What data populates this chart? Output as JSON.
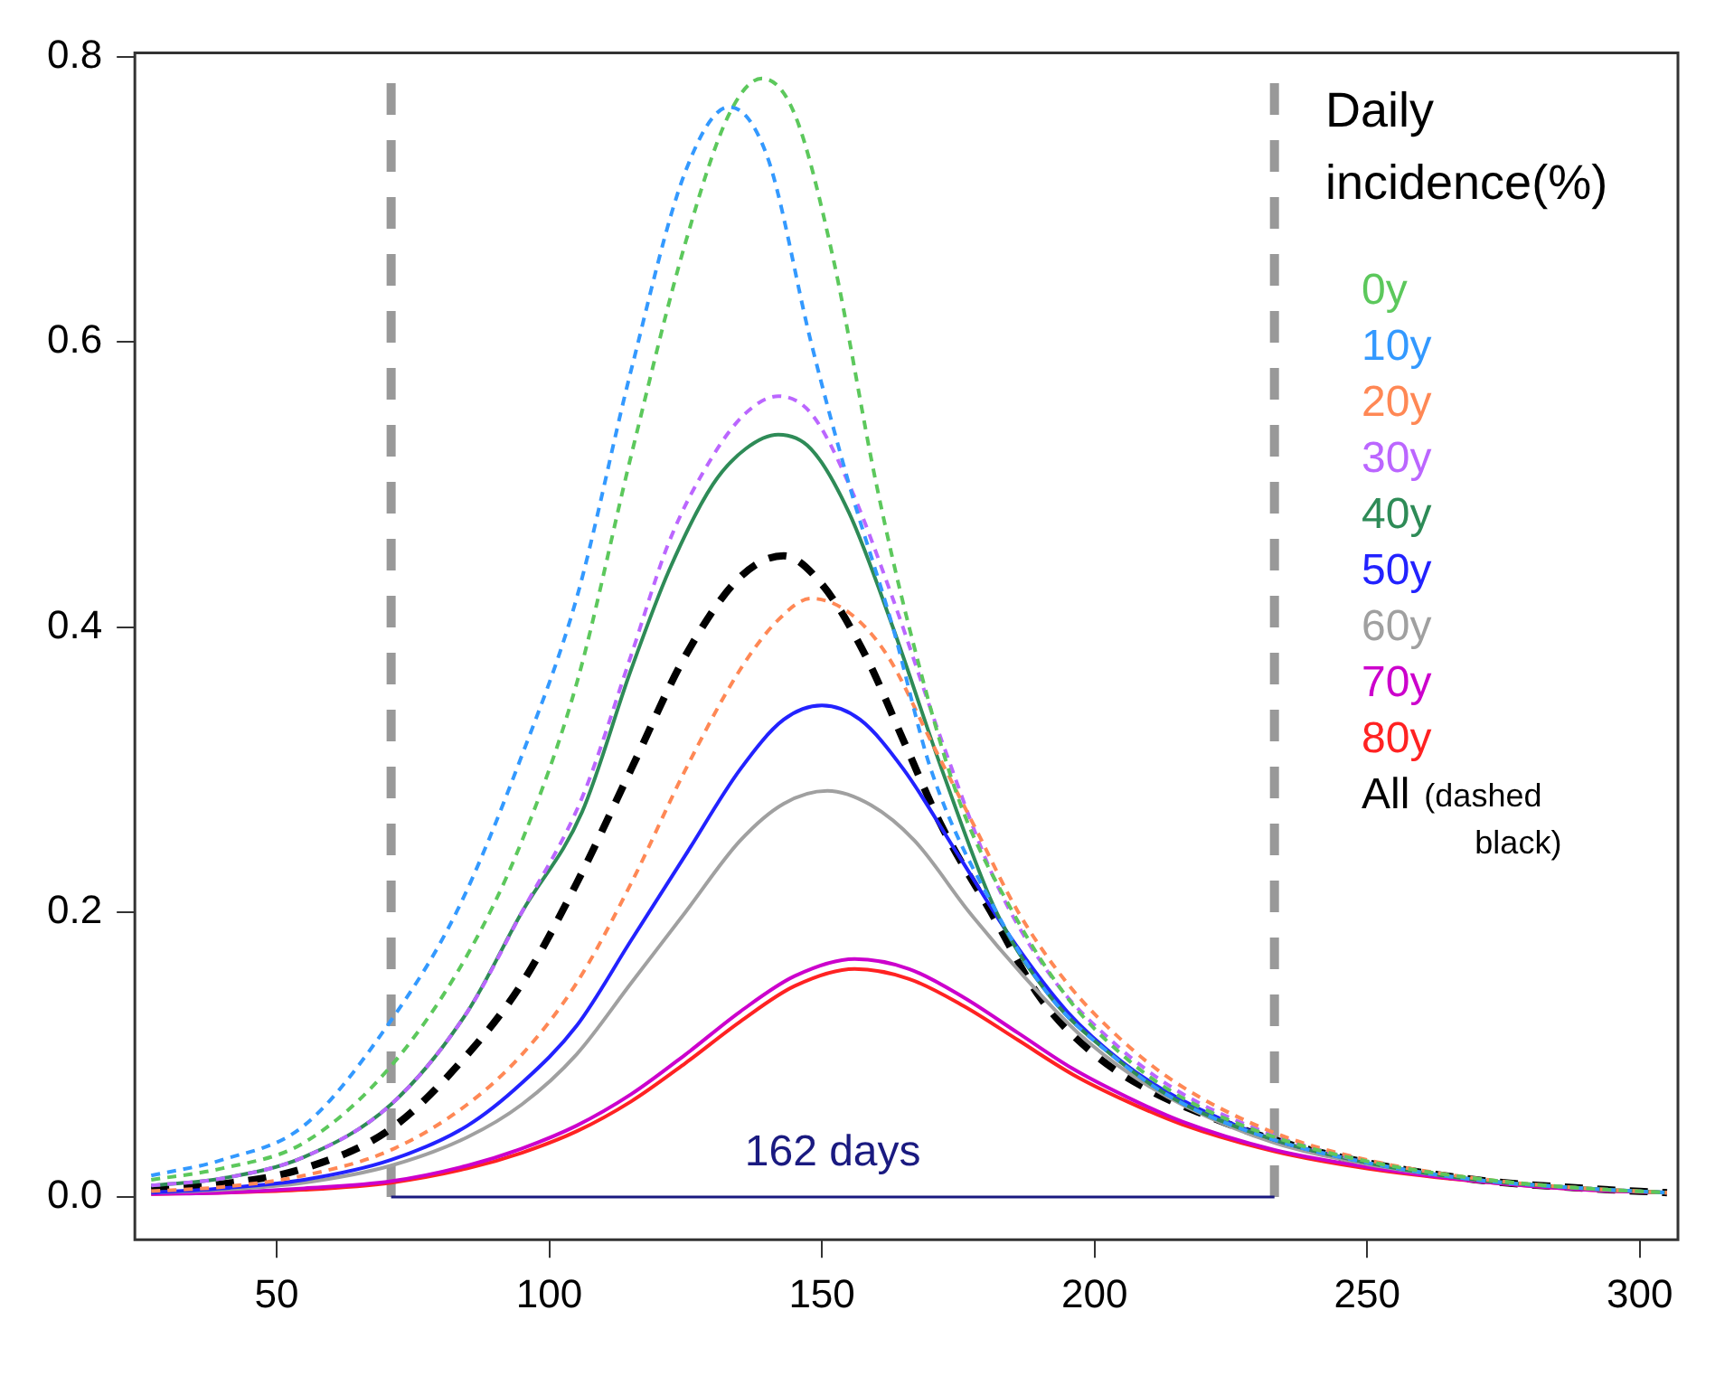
{
  "chart_data": {
    "type": "line",
    "legend_title": "Daily incidence(%)",
    "legend": "right",
    "grid": false,
    "marker": "none",
    "xlim": [
      24,
      307
    ],
    "ylim": [
      -0.03,
      0.803
    ],
    "xticks": [
      50,
      100,
      150,
      200,
      250,
      300
    ],
    "yticks": [
      {
        "value": 0,
        "label": "0.0"
      },
      0.2,
      0.4,
      0.6,
      0.8
    ],
    "series": [
      {
        "name": "0y",
        "color": "#5cc85c",
        "line_style": "dashed",
        "x": [
          27,
          40,
          55,
          71,
          85,
          95,
          105,
          115,
          125,
          133,
          139,
          145,
          152,
          160,
          166,
          175,
          185,
          195,
          205,
          215,
          233,
          250,
          270,
          290,
          305
        ],
        "values": [
          0.012,
          0.02,
          0.038,
          0.092,
          0.17,
          0.25,
          0.36,
          0.52,
          0.67,
          0.76,
          0.785,
          0.76,
          0.66,
          0.5,
          0.4,
          0.28,
          0.2,
          0.14,
          0.1,
          0.072,
          0.042,
          0.025,
          0.013,
          0.006,
          0.003
        ]
      },
      {
        "name": "10y",
        "color": "#3399ff",
        "line_style": "dashed",
        "x": [
          27,
          40,
          55,
          71,
          83,
          95,
          105,
          115,
          125,
          133,
          140,
          148,
          155,
          163,
          170,
          182,
          192,
          203,
          215,
          233,
          250,
          270,
          290,
          305
        ],
        "values": [
          0.015,
          0.026,
          0.05,
          0.124,
          0.2,
          0.31,
          0.42,
          0.58,
          0.72,
          0.765,
          0.73,
          0.6,
          0.5,
          0.4,
          0.3,
          0.2,
          0.14,
          0.1,
          0.068,
          0.04,
          0.024,
          0.012,
          0.006,
          0.003
        ]
      },
      {
        "name": "20y",
        "color": "#ff8855",
        "line_style": "dashed",
        "x": [
          27,
          40,
          55,
          71,
          85,
          95,
          105,
          115,
          125,
          135,
          142,
          148,
          155,
          162,
          170,
          178,
          186,
          195,
          205,
          215,
          233,
          250,
          270,
          290,
          305
        ],
        "values": [
          0.004,
          0.007,
          0.015,
          0.033,
          0.065,
          0.1,
          0.15,
          0.22,
          0.3,
          0.37,
          0.405,
          0.42,
          0.41,
          0.38,
          0.32,
          0.26,
          0.2,
          0.15,
          0.11,
          0.08,
          0.045,
          0.026,
          0.013,
          0.006,
          0.003
        ]
      },
      {
        "name": "30y",
        "color": "#bb66ff",
        "line_style": "dashed",
        "x": [
          27,
          40,
          55,
          71,
          85,
          95,
          106,
          115,
          122,
          130,
          136,
          142,
          148,
          155,
          163,
          172,
          182,
          192,
          203,
          215,
          233,
          247
        ],
        "values": [
          0.008,
          0.013,
          0.028,
          0.065,
          0.13,
          0.2,
          0.28,
          0.38,
          0.46,
          0.52,
          0.55,
          0.562,
          0.55,
          0.5,
          0.42,
          0.32,
          0.22,
          0.155,
          0.11,
          0.075,
          0.043,
          0.027
        ]
      },
      {
        "name": "40y",
        "color": "#2e8b57",
        "line_style": "solid",
        "x": [
          27,
          40,
          55,
          71,
          85,
          95,
          106,
          115,
          122,
          130,
          136,
          142,
          148,
          155,
          163,
          172,
          182,
          192,
          203,
          215,
          233,
          250,
          270,
          290,
          305
        ],
        "values": [
          0.008,
          0.013,
          0.028,
          0.065,
          0.13,
          0.2,
          0.27,
          0.37,
          0.44,
          0.5,
          0.525,
          0.535,
          0.525,
          0.48,
          0.4,
          0.3,
          0.2,
          0.14,
          0.1,
          0.068,
          0.04,
          0.024,
          0.012,
          0.006,
          0.003
        ]
      },
      {
        "name": "50y",
        "color": "#2222ff",
        "line_style": "solid",
        "x": [
          27,
          40,
          55,
          71,
          85,
          95,
          105,
          115,
          125,
          135,
          143,
          150,
          157,
          165,
          175,
          185,
          195,
          205,
          215,
          233,
          250
        ],
        "values": [
          0.003,
          0.006,
          0.012,
          0.026,
          0.05,
          0.08,
          0.12,
          0.18,
          0.24,
          0.3,
          0.335,
          0.345,
          0.335,
          0.3,
          0.24,
          0.18,
          0.13,
          0.095,
          0.07,
          0.04,
          0.024
        ]
      },
      {
        "name": "60y",
        "color": "#a0a0a0",
        "line_style": "solid",
        "x": [
          27,
          40,
          55,
          71,
          85,
          95,
          105,
          115,
          125,
          135,
          143,
          151,
          159,
          167,
          177,
          187,
          197,
          207,
          217,
          233,
          250,
          270,
          290,
          305
        ],
        "values": [
          0.003,
          0.005,
          0.01,
          0.022,
          0.042,
          0.065,
          0.1,
          0.15,
          0.2,
          0.25,
          0.276,
          0.285,
          0.275,
          0.25,
          0.2,
          0.155,
          0.115,
          0.085,
          0.063,
          0.038,
          0.023,
          0.012,
          0.006,
          0.003
        ]
      },
      {
        "name": "70y",
        "color": "#cc00cc",
        "line_style": "solid",
        "x": [
          27,
          40,
          55,
          71,
          85,
          95,
          105,
          115,
          125,
          135,
          145,
          156,
          166,
          176,
          186,
          196,
          206,
          216,
          233,
          250,
          270,
          290,
          305
        ],
        "values": [
          0.002,
          0.003,
          0.006,
          0.011,
          0.022,
          0.034,
          0.05,
          0.072,
          0.1,
          0.13,
          0.155,
          0.167,
          0.16,
          0.14,
          0.115,
          0.09,
          0.07,
          0.053,
          0.033,
          0.021,
          0.011,
          0.005,
          0.003
        ]
      },
      {
        "name": "80y",
        "color": "#ff2222",
        "line_style": "solid",
        "x": [
          27,
          40,
          55,
          71,
          85,
          95,
          105,
          115,
          125,
          135,
          145,
          156,
          166,
          176,
          186,
          196,
          206,
          216,
          233,
          250,
          270,
          290,
          305
        ],
        "values": [
          0.002,
          0.003,
          0.005,
          0.01,
          0.02,
          0.031,
          0.046,
          0.067,
          0.094,
          0.123,
          0.148,
          0.16,
          0.153,
          0.134,
          0.11,
          0.086,
          0.067,
          0.051,
          0.032,
          0.02,
          0.011,
          0.005,
          0.003
        ]
      },
      {
        "name": "All",
        "color": "#000000",
        "line_style": "dashed",
        "x": [
          27,
          40,
          55,
          71,
          85,
          95,
          105,
          115,
          125,
          135,
          143,
          150,
          158,
          165,
          172,
          181,
          190,
          200,
          210,
          220,
          233,
          250,
          270,
          290,
          305
        ],
        "values": [
          0.005,
          0.009,
          0.02,
          0.048,
          0.1,
          0.15,
          0.22,
          0.3,
          0.38,
          0.435,
          0.45,
          0.43,
          0.38,
          0.32,
          0.26,
          0.2,
          0.14,
          0.1,
          0.075,
          0.058,
          0.04,
          0.024,
          0.012,
          0.006,
          0.003
        ]
      },
      {
        "name": "162 days",
        "type": "line",
        "color": "#1a1a80",
        "line_style": "solid",
        "x": [
          71,
          233
        ],
        "values": [
          0,
          0
        ]
      }
    ],
    "ref_lines": [
      {
        "axis": "x",
        "value": 71,
        "color": "#999999",
        "line_style": "dashed"
      },
      {
        "axis": "x",
        "value": 233,
        "color": "#999999",
        "line_style": "dashed"
      }
    ],
    "annotations": [
      "(dashed black)"
    ]
  }
}
